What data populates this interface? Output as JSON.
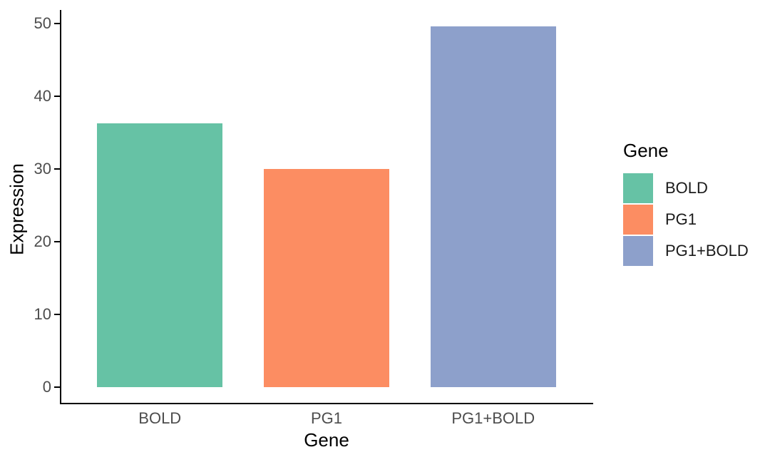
{
  "chart_data": {
    "type": "bar",
    "title": "",
    "xlabel": "Gene",
    "ylabel": "Expression",
    "categories": [
      "BOLD",
      "PG1",
      "PG1+BOLD"
    ],
    "values": [
      36.3,
      30,
      49.6
    ],
    "colors": [
      "#66C2A5",
      "#FC8D62",
      "#8DA0CB"
    ],
    "ylim": [
      0,
      50
    ],
    "yticks": [
      0,
      10,
      20,
      30,
      40,
      50
    ],
    "y_range_displayed": [
      -2.2,
      51.9
    ],
    "grid": "off",
    "bar_border": "none",
    "axis_line_color": "#000000",
    "tick_label_color": "#4D4D4D",
    "axis_title_color": "#000000",
    "background_color": "#FFFFFF",
    "legend": {
      "title": "Gene",
      "position": "right",
      "entries": [
        {
          "label": "BOLD",
          "color": "#66C2A5"
        },
        {
          "label": "PG1",
          "color": "#FC8D62"
        },
        {
          "label": "PG1+BOLD",
          "color": "#8DA0CB"
        }
      ]
    }
  }
}
